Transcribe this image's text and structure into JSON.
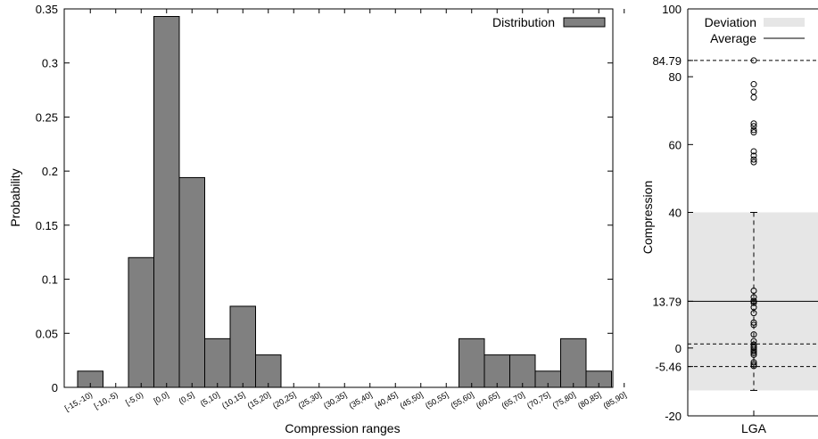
{
  "chart_data": [
    {
      "type": "bar",
      "title": "",
      "xlabel": "Compression ranges",
      "ylabel": "Probability",
      "ylim": [
        0,
        0.35
      ],
      "yticks": [
        "0",
        "0.05",
        "0.1",
        "0.15",
        "0.2",
        "0.25",
        "0.3",
        "0.35"
      ],
      "grid": false,
      "legend_position": "top-right",
      "categories": [
        "[-15,-10)",
        "[-10,-5)",
        "[-5,0)",
        "[0,0]",
        "(0,5]",
        "(5,10]",
        "(10,15]",
        "(15,20]",
        "(20,25]",
        "(25,30]",
        "(30,35]",
        "(35,40]",
        "(40,45]",
        "(45,50]",
        "(50,55]",
        "(55,60]",
        "(60,65]",
        "(65,70]",
        "(70,75]",
        "(75,80]",
        "(80,85]",
        "(85,90]"
      ],
      "series": [
        {
          "name": "Distribution",
          "color": "#808080",
          "values": [
            0.015,
            0,
            0.12,
            0.343,
            0.194,
            0.045,
            0.075,
            0.03,
            0,
            0,
            0,
            0,
            0,
            0,
            0,
            0.045,
            0.03,
            0.03,
            0.015,
            0.045,
            0.015,
            0
          ]
        }
      ]
    },
    {
      "type": "scatter",
      "title": "",
      "xlabel": "LGA",
      "ylabel": "Compression",
      "ylim": [
        -20,
        100
      ],
      "yticks": [
        "-20",
        "-5.46",
        "0",
        "13.79",
        "40",
        "60",
        "80",
        "84.79",
        "100"
      ],
      "ytick_values": [
        -20,
        -5.46,
        0,
        13.79,
        40,
        60,
        80,
        84.79,
        100
      ],
      "legend_position": "top-left",
      "legend": [
        "Deviation",
        "Average"
      ],
      "average": 13.79,
      "deviation_range": [
        -12.5,
        40
      ],
      "dashed_lines": [
        84.79,
        1.2,
        -5.46
      ],
      "whisker_range": [
        -12.5,
        40
      ],
      "points": [
        84.79,
        77.8,
        75.6,
        73.9,
        66.2,
        65.4,
        64.3,
        63.6,
        58.0,
        56.7,
        55.6,
        54.8,
        16.9,
        15.0,
        13.9,
        13.8,
        13.3,
        12.0,
        10.3,
        7.5,
        6.8,
        4.0,
        2.0,
        1.0,
        0.4,
        0.1,
        -0.5,
        -1.0,
        -1.5,
        -2.0,
        -4.2,
        -4.8,
        -5.3
      ]
    }
  ]
}
